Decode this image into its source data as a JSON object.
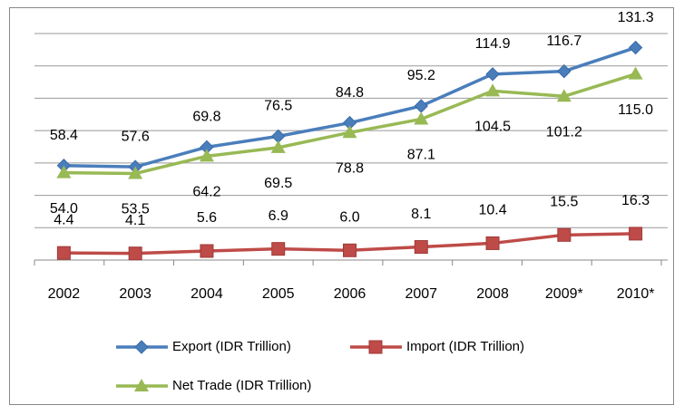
{
  "chart_data": {
    "type": "line",
    "categories": [
      "2002",
      "2003",
      "2004",
      "2005",
      "2006",
      "2007",
      "2008",
      "2009*",
      "2010*"
    ],
    "series": [
      {
        "name": "Export (IDR Trillion)",
        "color": "#4a7ebb",
        "values": [
          58.4,
          57.6,
          69.8,
          76.5,
          84.8,
          95.2,
          114.9,
          116.7,
          131.3
        ]
      },
      {
        "name": "Import (IDR Trillion)",
        "color": "#be4b48",
        "values": [
          4.4,
          4.1,
          5.6,
          6.9,
          6.0,
          8.1,
          10.4,
          15.5,
          16.3
        ]
      },
      {
        "name": "Net Trade (IDR Trillion)",
        "color": "#98b954",
        "values": [
          54.0,
          53.5,
          64.2,
          69.5,
          78.8,
          87.1,
          104.5,
          101.2,
          115.0
        ]
      }
    ],
    "ylim": [
      0,
      140
    ],
    "yticks": [
      0,
      20,
      40,
      60,
      80,
      100,
      120,
      140
    ],
    "grid": true
  }
}
